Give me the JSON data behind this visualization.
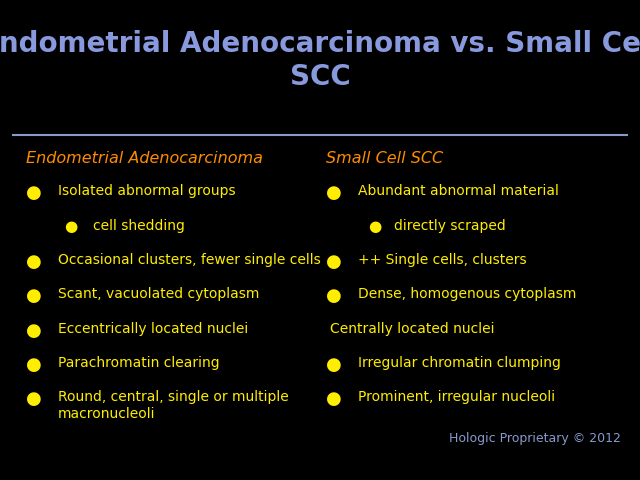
{
  "title": "Endometrial Adenocarcinoma vs. Small Cell\nSCC",
  "background_color": "#020280",
  "outer_background": "#000000",
  "title_color": "#8899dd",
  "title_fontsize": 20,
  "divider_color": "#8899cc",
  "left_heading": "Endometrial Adenocarcinoma",
  "right_heading": "Small Cell SCC",
  "heading_color": "#ff8c00",
  "heading_fontsize": 11.5,
  "bullet_color": "#ffee00",
  "text_color": "#ffee00",
  "text_fontsize": 10,
  "left_items": [
    {
      "text": "Isolated abnormal groups",
      "indent": 0
    },
    {
      "text": "cell shedding",
      "indent": 1
    },
    {
      "text": "Occasional clusters, fewer single cells",
      "indent": 0
    },
    {
      "text": "Scant, vacuolated cytoplasm",
      "indent": 0
    },
    {
      "text": "Eccentrically located nuclei",
      "indent": 0
    },
    {
      "text": "Parachromatin clearing",
      "indent": 0
    },
    {
      "text": "Round, central, single or multiple\nmacronucleoli",
      "indent": 0
    }
  ],
  "right_items": [
    {
      "text": "Abundant abnormal material",
      "indent": 0
    },
    {
      "text": "directly scraped",
      "indent": 1
    },
    {
      "text": "++ Single cells, clusters",
      "indent": 0
    },
    {
      "text": "Dense, homogenous cytoplasm",
      "indent": 0
    },
    {
      "text": "Centrally located nuclei",
      "indent": 2
    },
    {
      "text": "Irregular chromatin clumping",
      "indent": 0
    },
    {
      "text": "Prominent, irregular nucleoli",
      "indent": 0
    }
  ],
  "copyright": "Hologic Proprietary © 2012",
  "copyright_color": "#8899cc",
  "copyright_fontsize": 9
}
